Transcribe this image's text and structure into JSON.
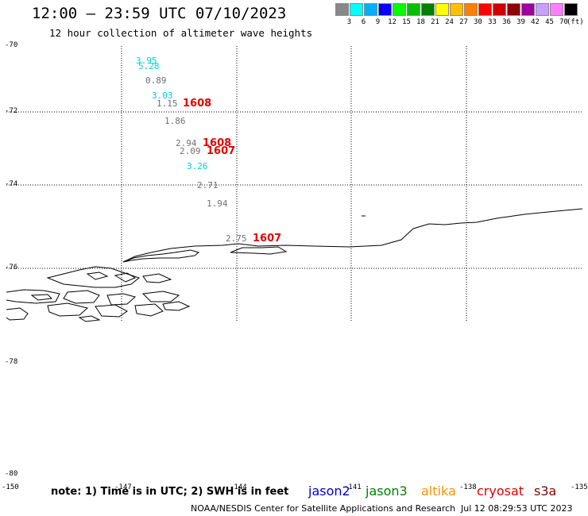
{
  "title": "12:00 – 23:59 UTC 07/10/2023",
  "subtitle": "12 hour collection of altimeter wave heights",
  "scale": {
    "colors": [
      "#888888",
      "#00ffff",
      "#00b0ff",
      "#0000ff",
      "#00ff00",
      "#00c000",
      "#008000",
      "#ffff00",
      "#ffc000",
      "#ff8000",
      "#ff0000",
      "#d00000",
      "#900000",
      "#a000a0",
      "#c8a0ff",
      "#ff80ff",
      "#000000"
    ],
    "labels": [
      "3",
      "6",
      "9",
      "12",
      "15",
      "18",
      "21",
      "24",
      "27",
      "30",
      "33",
      "36",
      "39",
      "42",
      "45",
      "70"
    ],
    "unit": "(ft)"
  },
  "lat_labels": [
    "-70",
    "-72",
    "-74",
    "-76",
    "-78",
    "-80"
  ],
  "lon_labels": [
    "-150",
    "-147",
    "-144",
    "-141",
    "-138",
    "-135"
  ],
  "observations": [
    {
      "value": "3.95",
      "color": "#00d0d0"
    },
    {
      "value": "5.28",
      "color": "#00d0d0"
    },
    {
      "value": "0.89",
      "color": "#707070"
    },
    {
      "value": "3.03",
      "color": "#00d0d0"
    },
    {
      "value": "1.15",
      "color": "#707070"
    },
    {
      "value": "1.86",
      "color": "#707070"
    },
    {
      "value": "2.94",
      "color": "#707070"
    },
    {
      "value": "2.09",
      "color": "#707070"
    },
    {
      "value": "3.26",
      "color": "#00d0d0"
    },
    {
      "value": "2.71",
      "color": "#707070"
    },
    {
      "value": "1.94",
      "color": "#707070"
    },
    {
      "value": "2.75",
      "color": "#707070"
    }
  ],
  "pass_labels": [
    "1608",
    "1608",
    "1607",
    "1607"
  ],
  "note": "note: 1) Time is in UTC; 2) SWH is in feet",
  "satellites": [
    {
      "name": "jason2",
      "color": "#0000d0"
    },
    {
      "name": "jason3",
      "color": "#008000"
    },
    {
      "name": "altika",
      "color": "#ff9000"
    },
    {
      "name": "cryosat",
      "color": "#e00000"
    },
    {
      "name": "s3a",
      "color": "#800000"
    }
  ],
  "footer": "NOAA/NESDIS Center for Satellite Applications and Research",
  "generated": "Jul 12 08:29:53 UTC 2023"
}
